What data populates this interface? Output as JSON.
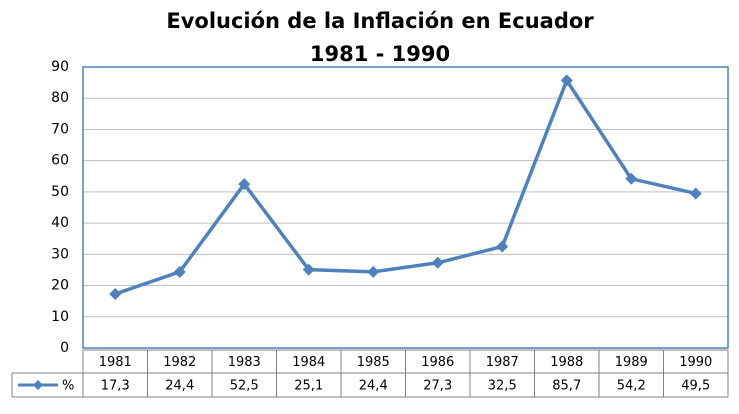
{
  "chart_data": {
    "type": "line",
    "title": "Evolución de la Inflación en Ecuador",
    "subtitle": "1981 - 1990",
    "categories": [
      "1981",
      "1982",
      "1983",
      "1984",
      "1985",
      "1986",
      "1987",
      "1988",
      "1989",
      "1990"
    ],
    "series": [
      {
        "name": "%",
        "color": "#4f81bd",
        "values": [
          17.3,
          24.4,
          52.5,
          25.1,
          24.4,
          27.3,
          32.5,
          85.7,
          54.2,
          49.5
        ],
        "value_labels": [
          "17,3",
          "24,4",
          "52,5",
          "25,1",
          "24,4",
          "27,3",
          "32,5",
          "85,7",
          "54,2",
          "49,5"
        ]
      }
    ],
    "ylim": [
      0,
      90
    ],
    "yticks": [
      0,
      10,
      20,
      30,
      40,
      50,
      60,
      70,
      80,
      90
    ],
    "grid": true
  }
}
